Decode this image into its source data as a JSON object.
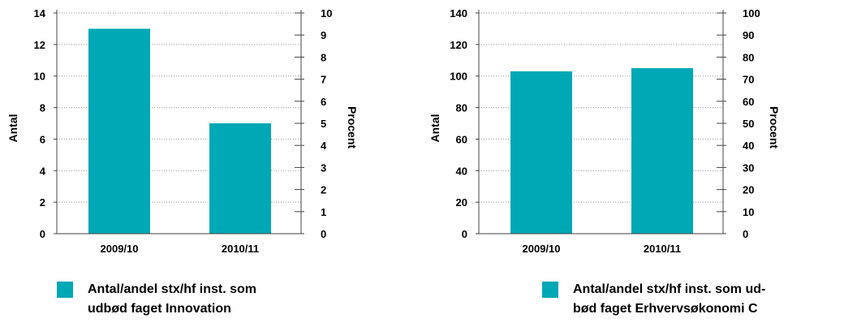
{
  "colors": {
    "bar": "#00A8B5",
    "axis": "#444444",
    "grid": "#999999"
  },
  "chart_data": [
    {
      "type": "bar",
      "categories": [
        "2009/10",
        "2010/11"
      ],
      "values": [
        13,
        7
      ],
      "ylabel": "Antal",
      "y2label": "Procent",
      "ylim": [
        0,
        14
      ],
      "yticks": [
        "0",
        "2",
        "4",
        "6",
        "8",
        "10",
        "12",
        "14"
      ],
      "y2lim": [
        0,
        10
      ],
      "y2ticks": [
        "0",
        "1",
        "2",
        "3",
        "4",
        "5",
        "6",
        "7",
        "8",
        "9",
        "10"
      ],
      "grid": true,
      "legend": [
        "Antal/andel stx/hf inst. som",
        "udbød faget Innovation"
      ]
    },
    {
      "type": "bar",
      "categories": [
        "2009/10",
        "2010/11"
      ],
      "values": [
        103,
        105
      ],
      "ylabel": "Antal",
      "y2label": "Procent",
      "ylim": [
        0,
        140
      ],
      "yticks": [
        "0",
        "20",
        "40",
        "60",
        "80",
        "100",
        "120",
        "140"
      ],
      "y2lim": [
        0,
        100
      ],
      "y2ticks": [
        "0",
        "10",
        "20",
        "30",
        "40",
        "50",
        "60",
        "70",
        "80",
        "90",
        "100"
      ],
      "grid": true,
      "legend": [
        "Antal/andel stx/hf inst. som ud-",
        "bød faget Erhvervsøkonomi C"
      ]
    }
  ]
}
